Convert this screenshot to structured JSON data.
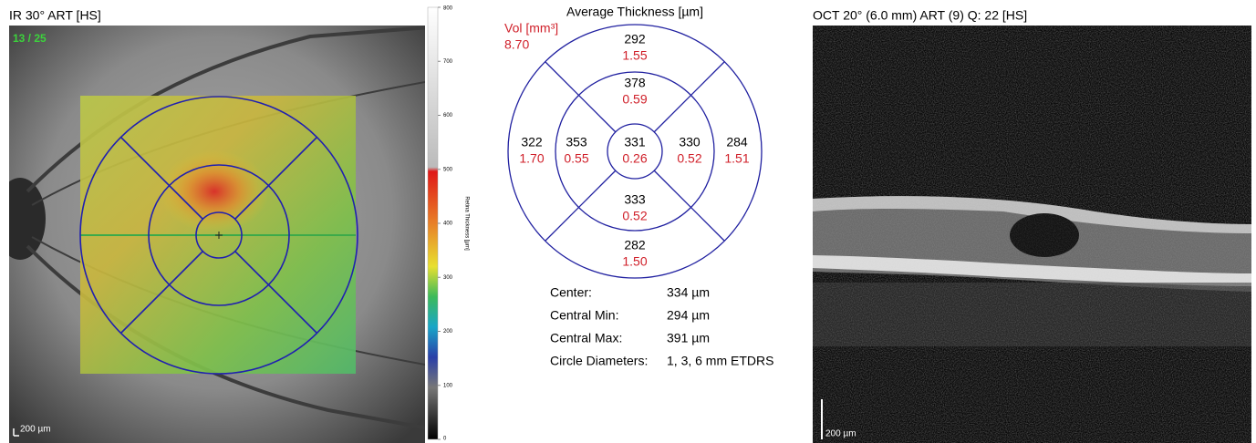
{
  "fundus": {
    "title": "IR 30° ART [HS]",
    "scan_counter": "13 / 25",
    "scale_label": "200 µm"
  },
  "colorbar": {
    "label": "Retina Thickness [µm]",
    "ticks": [
      0,
      100,
      200,
      300,
      400,
      500,
      600,
      700,
      800
    ]
  },
  "etdrs": {
    "title": "Average Thickness [µm]",
    "volume_label": "Vol [mm³]",
    "total_volume": "8.70",
    "sectors": [
      {
        "thickness": "292",
        "volume": "1.55"
      },
      {
        "thickness": "378",
        "volume": "0.59"
      },
      {
        "thickness": "322",
        "volume": "1.70"
      },
      {
        "thickness": "353",
        "volume": "0.55"
      },
      {
        "thickness": "331",
        "volume": "0.26"
      },
      {
        "thickness": "330",
        "volume": "0.52"
      },
      {
        "thickness": "284",
        "volume": "1.51"
      },
      {
        "thickness": "333",
        "volume": "0.52"
      },
      {
        "thickness": "282",
        "volume": "1.50"
      }
    ]
  },
  "stats": [
    [
      "Center:",
      "334 µm"
    ],
    [
      "Central Min:",
      "294 µm"
    ],
    [
      "Central Max:",
      "391 µm"
    ],
    [
      "Circle Diameters:",
      "1, 3, 6 mm ETDRS"
    ]
  ],
  "oct": {
    "title": "OCT 20° (6.0 mm) ART (9) Q: 22 [HS]",
    "scale_label": "200 µm"
  }
}
